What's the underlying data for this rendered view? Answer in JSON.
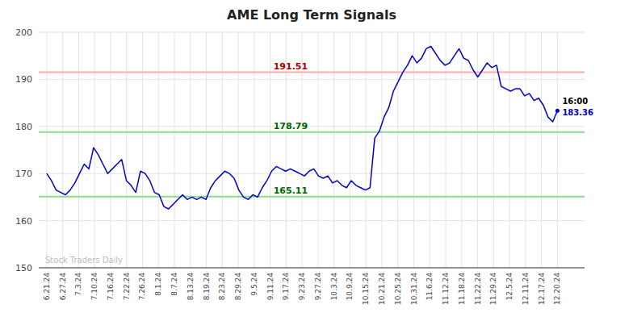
{
  "chart_data": {
    "type": "line",
    "title": "AME Long Term Signals",
    "color": "#0000cc",
    "grid": true,
    "ylim": [
      150,
      200
    ],
    "yticks": [
      150,
      160,
      170,
      180,
      190,
      200
    ],
    "xlim": [
      -1.703125,
      114.790625
    ],
    "xticks": [
      {
        "value": 0,
        "label": "6.21.24"
      },
      {
        "value": 3.40625,
        "label": "6.27.24"
      },
      {
        "value": 6.8125,
        "label": "7.3.24"
      },
      {
        "value": 10.21875,
        "label": "7.10.24"
      },
      {
        "value": 13.625,
        "label": "7.16.24"
      },
      {
        "value": 17.03125,
        "label": "7.22.24"
      },
      {
        "value": 20.4375,
        "label": "7.26.24"
      },
      {
        "value": 23.84375,
        "label": "8.1.24"
      },
      {
        "value": 27.25,
        "label": "8.7.24"
      },
      {
        "value": 30.65625,
        "label": "8.13.24"
      },
      {
        "value": 34.0625,
        "label": "8.19.24"
      },
      {
        "value": 37.46875,
        "label": "8.23.24"
      },
      {
        "value": 40.875,
        "label": "8.29.24"
      },
      {
        "value": 44.28125,
        "label": "9.5.24"
      },
      {
        "value": 47.6875,
        "label": "9.11.24"
      },
      {
        "value": 51.09375,
        "label": "9.17.24"
      },
      {
        "value": 54.5,
        "label": "9.23.24"
      },
      {
        "value": 57.90625,
        "label": "9.27.24"
      },
      {
        "value": 61.3125,
        "label": "10.3.24"
      },
      {
        "value": 64.71875,
        "label": "10.9.24"
      },
      {
        "value": 68.125,
        "label": "10.15.24"
      },
      {
        "value": 71.53125,
        "label": "10.21.24"
      },
      {
        "value": 74.9375,
        "label": "10.25.24"
      },
      {
        "value": 78.34375,
        "label": "10.31.24"
      },
      {
        "value": 81.75,
        "label": "11.6.24"
      },
      {
        "value": 85.15625,
        "label": "11.12.24"
      },
      {
        "value": 88.5625,
        "label": "11.18.24"
      },
      {
        "value": 91.96875,
        "label": "11.22.24"
      },
      {
        "value": 95.375,
        "label": "11.29.24"
      },
      {
        "value": 98.78125,
        "label": "12.5.24"
      },
      {
        "value": 102.1875,
        "label": "12.11.24"
      },
      {
        "value": 105.59375,
        "label": "12.17.24"
      },
      {
        "value": 109,
        "label": "12.20.24"
      }
    ],
    "values": [
      170.0,
      168.5,
      166.5,
      166.0,
      165.5,
      166.5,
      168.0,
      170.0,
      172.0,
      171.0,
      175.5,
      174.0,
      172.0,
      170.0,
      171.0,
      172.0,
      173.0,
      168.5,
      167.5,
      166.0,
      170.5,
      170.0,
      168.5,
      166.0,
      165.5,
      163.0,
      162.5,
      163.5,
      164.5,
      165.5,
      164.5,
      165.0,
      164.5,
      165.0,
      164.5,
      167.0,
      168.5,
      169.5,
      170.5,
      170.0,
      169.0,
      166.5,
      165.0,
      164.5,
      165.5,
      165.0,
      167.0,
      168.5,
      170.5,
      171.5,
      171.0,
      170.5,
      171.0,
      170.5,
      170.0,
      169.5,
      170.5,
      171.0,
      169.5,
      169.0,
      169.5,
      168.0,
      168.5,
      167.5,
      167.0,
      168.5,
      167.5,
      167.0,
      166.5,
      167.0,
      177.5,
      179.0,
      182.0,
      184.0,
      187.5,
      189.5,
      191.5,
      193.0,
      195.0,
      193.5,
      194.5,
      196.5,
      197.0,
      195.5,
      194.0,
      193.0,
      193.5,
      195.0,
      196.5,
      194.5,
      194.0,
      192.0,
      190.5,
      192.0,
      193.5,
      192.5,
      193.0,
      188.5,
      188.0,
      187.5,
      188.0,
      188.0,
      186.5,
      187.0,
      185.5,
      186.0,
      184.5,
      182.0,
      181.0,
      183.36
    ],
    "reference_lines": [
      {
        "value": 191.51,
        "label": "191.51",
        "color": "#ffaaaa",
        "label_color": "#aa0000"
      },
      {
        "value": 178.79,
        "label": "178.79",
        "color": "#88dd88",
        "label_color": "#006600"
      },
      {
        "value": 165.11,
        "label": "165.11",
        "color": "#88dd88",
        "label_color": "#006600"
      }
    ],
    "end_labels": [
      "16:00",
      "183.36"
    ],
    "watermark": "Stock Traders Daily"
  }
}
